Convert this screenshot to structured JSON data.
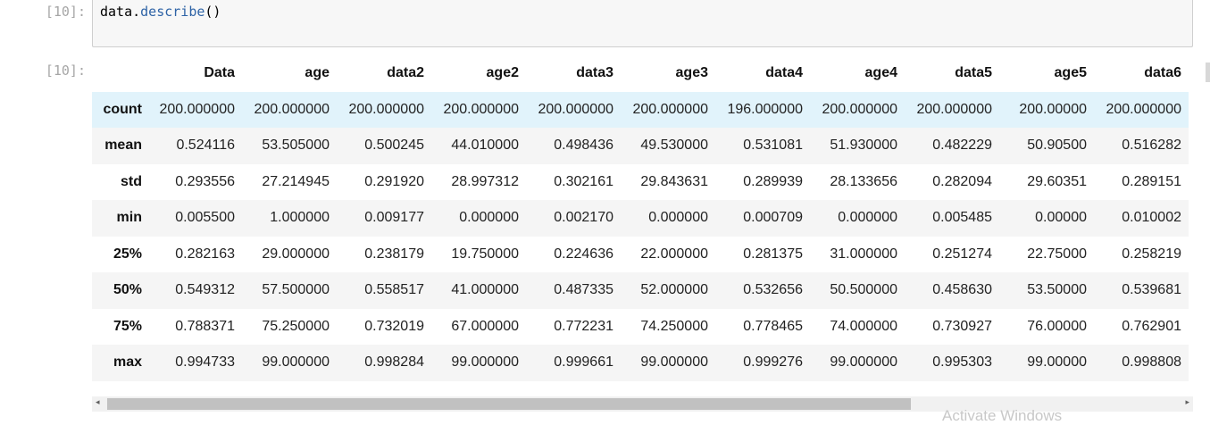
{
  "cell": {
    "in_prompt": "[10]:",
    "out_prompt": "[10]:",
    "code_obj": "data.",
    "code_fn": "describe",
    "code_args": "()"
  },
  "table": {
    "columns": [
      "Data",
      "age",
      "data2",
      "age2",
      "data3",
      "age3",
      "data4",
      "age4",
      "data5",
      "age5",
      "data6"
    ],
    "rows": [
      {
        "label": "count",
        "values": [
          "200.000000",
          "200.000000",
          "200.000000",
          "200.000000",
          "200.000000",
          "200.000000",
          "196.000000",
          "200.000000",
          "200.000000",
          "200.00000",
          "200.000000"
        ]
      },
      {
        "label": "mean",
        "values": [
          "0.524116",
          "53.505000",
          "0.500245",
          "44.010000",
          "0.498436",
          "49.530000",
          "0.531081",
          "51.930000",
          "0.482229",
          "50.90500",
          "0.516282"
        ]
      },
      {
        "label": "std",
        "values": [
          "0.293556",
          "27.214945",
          "0.291920",
          "28.997312",
          "0.302161",
          "29.843631",
          "0.289939",
          "28.133656",
          "0.282094",
          "29.60351",
          "0.289151"
        ]
      },
      {
        "label": "min",
        "values": [
          "0.005500",
          "1.000000",
          "0.009177",
          "0.000000",
          "0.002170",
          "0.000000",
          "0.000709",
          "0.000000",
          "0.005485",
          "0.00000",
          "0.010002"
        ]
      },
      {
        "label": "25%",
        "values": [
          "0.282163",
          "29.000000",
          "0.238179",
          "19.750000",
          "0.224636",
          "22.000000",
          "0.281375",
          "31.000000",
          "0.251274",
          "22.75000",
          "0.258219"
        ]
      },
      {
        "label": "50%",
        "values": [
          "0.549312",
          "57.500000",
          "0.558517",
          "41.000000",
          "0.487335",
          "52.000000",
          "0.532656",
          "50.500000",
          "0.458630",
          "53.50000",
          "0.539681"
        ]
      },
      {
        "label": "75%",
        "values": [
          "0.788371",
          "75.250000",
          "0.732019",
          "67.000000",
          "0.772231",
          "74.250000",
          "0.778465",
          "74.000000",
          "0.730927",
          "76.00000",
          "0.762901"
        ]
      },
      {
        "label": "max",
        "values": [
          "0.994733",
          "99.000000",
          "0.998284",
          "99.000000",
          "0.999661",
          "99.000000",
          "0.999276",
          "99.000000",
          "0.995303",
          "99.00000",
          "0.998808"
        ]
      }
    ],
    "highlighted_row": 0
  },
  "scrollbar": {
    "left_arrow": "◂",
    "right_arrow": "▸",
    "position": 0.0
  },
  "watermark": "Activate Windows"
}
